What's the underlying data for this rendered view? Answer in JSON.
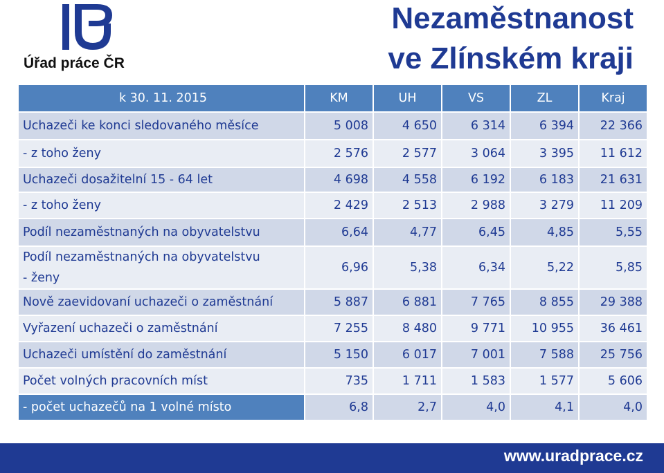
{
  "header": {
    "logo_caption": "Úřad práce ČR",
    "title_line1": "Nezaměstnanost",
    "title_line2": "ve Zlínském kraji"
  },
  "table": {
    "columns": [
      "k 30. 11. 2015",
      "KM",
      "UH",
      "VS",
      "ZL",
      "Kraj"
    ],
    "rows": [
      {
        "label": "Uchazeči ke konci sledovaného měsíce",
        "values": [
          "5 008",
          "4 650",
          "6 314",
          "6 394",
          "22 366"
        ]
      },
      {
        "label": "- z toho ženy",
        "values": [
          "2 576",
          "2 577",
          "3 064",
          "3 395",
          "11 612"
        ]
      },
      {
        "label": "Uchazeči dosažitelní 15 - 64 let",
        "values": [
          "4 698",
          "4 558",
          "6 192",
          "6 183",
          "21 631"
        ]
      },
      {
        "label": "- z toho ženy",
        "values": [
          "2 429",
          "2 513",
          "2 988",
          "3 279",
          "11 209"
        ]
      },
      {
        "label": "Podíl nezaměstnaných na obyvatelstvu",
        "values": [
          "6,64",
          "4,77",
          "6,45",
          "4,85",
          "5,55"
        ]
      },
      {
        "label_line1": "Podíl nezaměstnaných na obyvatelstvu",
        "label_line2": "- ženy",
        "values": [
          "6,96",
          "5,38",
          "6,34",
          "5,22",
          "5,85"
        ]
      },
      {
        "label": "Nově zaevidovaní uchazeči o zaměstnání",
        "values": [
          "5 887",
          "6 881",
          "7 765",
          "8 855",
          "29 388"
        ]
      },
      {
        "label": "Vyřazení uchazeči o zaměstnání",
        "values": [
          "7 255",
          "8 480",
          "9 771",
          "10 955",
          "36 461"
        ]
      },
      {
        "label": "Uchazeči umístění do zaměstnání",
        "values": [
          "5 150",
          "6 017",
          "7 001",
          "7 588",
          "25 756"
        ]
      },
      {
        "label": "Počet volných pracovních míst",
        "values": [
          "735",
          "1 711",
          "1 583",
          "1 577",
          "5 606"
        ]
      },
      {
        "label": "- počet uchazečů na 1 volné místo",
        "values": [
          "6,8",
          "2,7",
          "4,0",
          "4,1",
          "4,0"
        ]
      }
    ]
  },
  "footer": {
    "url": "www.uradprace.cz"
  },
  "colors": {
    "brand_blue": "#1f3a93",
    "header_blue": "#4f81bd",
    "row_light": "#e9edf4",
    "row_mid": "#d0d8e8"
  }
}
